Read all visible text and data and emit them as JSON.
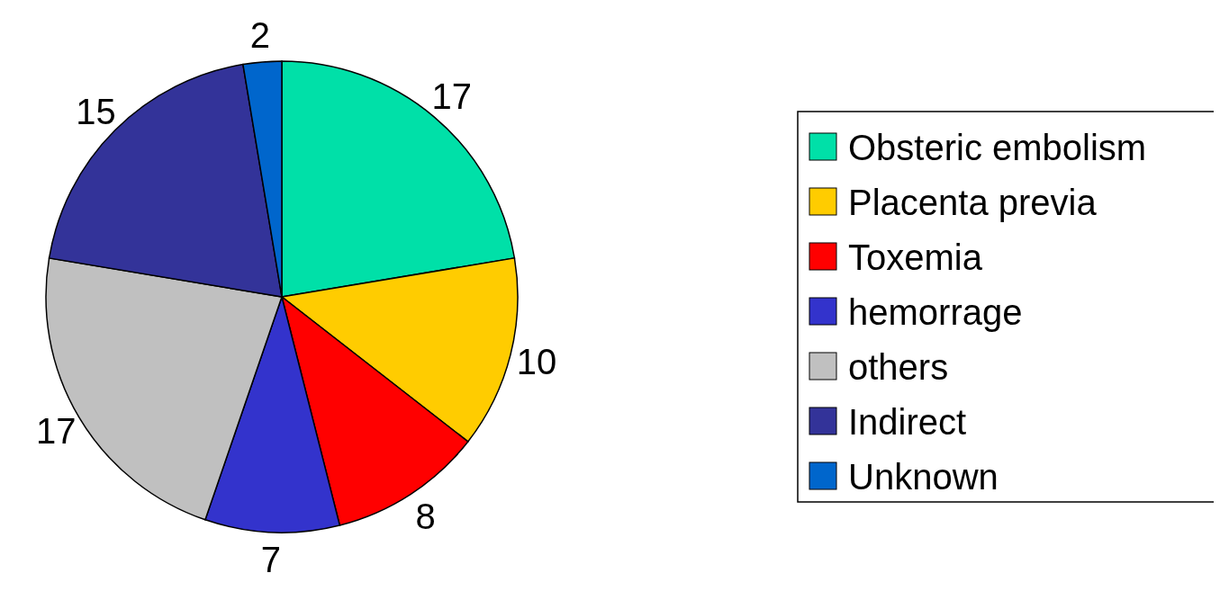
{
  "chart_data": {
    "type": "pie",
    "categories": [
      "Obsteric embolism",
      "Placenta previa",
      "Toxemia",
      "hemorrage",
      "others",
      "Indirect",
      "Unknown"
    ],
    "values": [
      17,
      10,
      8,
      7,
      17,
      15,
      2
    ],
    "colors": [
      "#00e0a8",
      "#ffcc00",
      "#ff0000",
      "#3333cc",
      "#c0c0c0",
      "#333399",
      "#0066cc"
    ],
    "data_labels": true,
    "legend": "right"
  }
}
